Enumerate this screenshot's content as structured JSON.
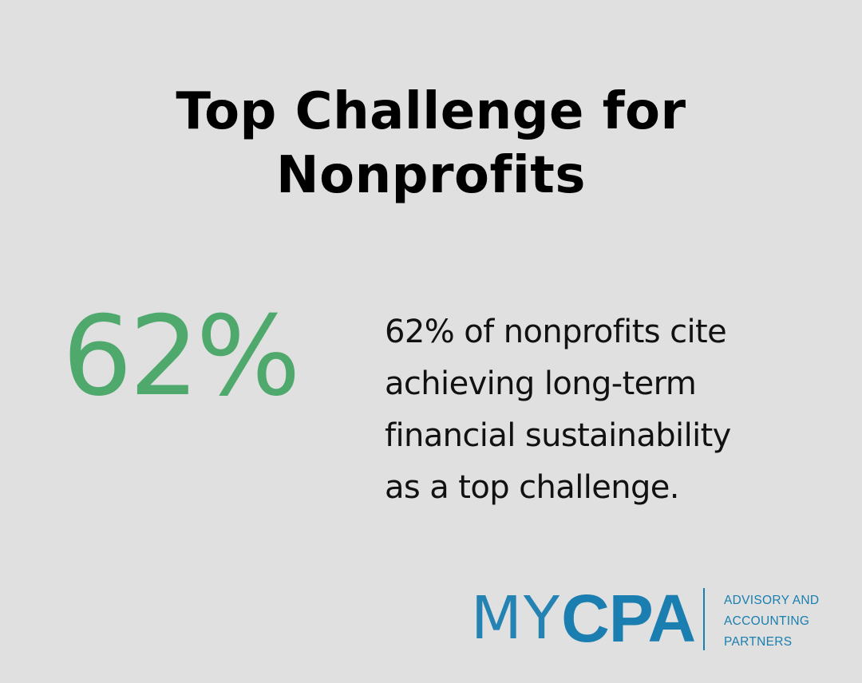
{
  "title": {
    "line1": "Top Challenge for",
    "line2": "Nonprofits"
  },
  "stat": {
    "value": "62%",
    "color": "#4fa96d"
  },
  "description": {
    "lines": [
      "62% of nonprofits cite",
      "achieving long-term",
      "financial sustainability",
      "as a top challenge."
    ]
  },
  "logo": {
    "my": "MY",
    "cpa": "CPA",
    "tagline": [
      "ADVISORY AND",
      "ACCOUNTING",
      "PARTNERS"
    ],
    "color": "#1a7fb0"
  },
  "colors": {
    "background": "#dfe0df",
    "text": "#000000"
  }
}
